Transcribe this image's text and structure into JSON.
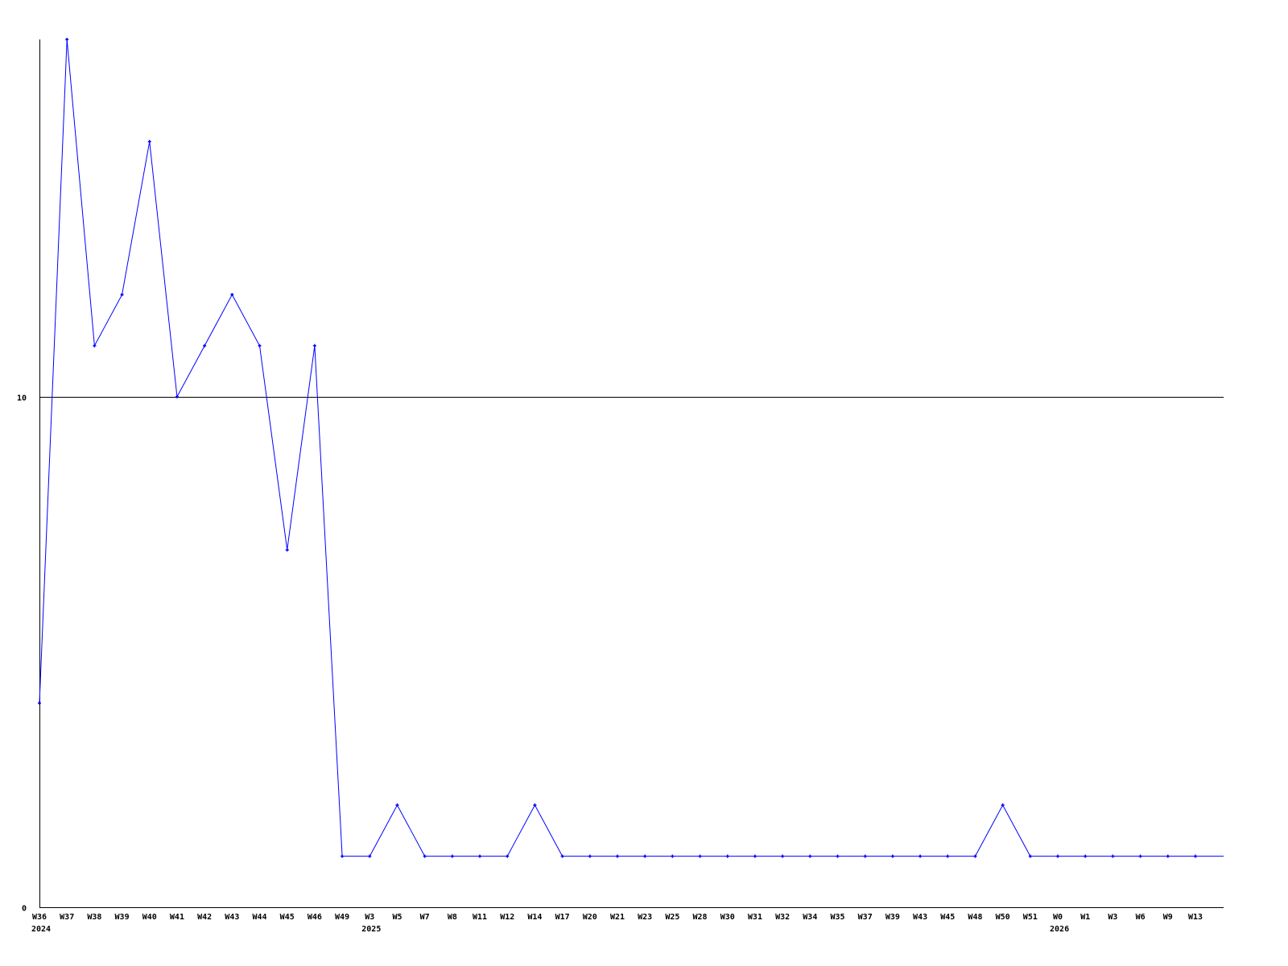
{
  "chart_data": {
    "type": "line",
    "title": "",
    "xlabel": "",
    "ylabel": "",
    "ylim": [
      0,
      17
    ],
    "yticks": [
      0,
      10
    ],
    "ytick_labels": [
      "0",
      "10"
    ],
    "grid": "horizontal line at 10",
    "line_color": "#0000ff",
    "axis_color": "#000000",
    "categories": [
      "W36",
      "W37",
      "W38",
      "W39",
      "W40",
      "W41",
      "W42",
      "W43",
      "W44",
      "W45",
      "W46",
      "W49",
      "W3",
      "W5",
      "W7",
      "W8",
      "W11",
      "W12",
      "W14",
      "W17",
      "W20",
      "W21",
      "W23",
      "W25",
      "W28",
      "W30",
      "W31",
      "W32",
      "W34",
      "W35",
      "W37",
      "W39",
      "W43",
      "W45",
      "W48",
      "W50",
      "W51",
      "W0",
      "W1",
      "W3",
      "W6",
      "W9",
      "W13"
    ],
    "year_labels": [
      {
        "category_index": 0,
        "label": "2024"
      },
      {
        "category_index": 12,
        "label": "2025"
      },
      {
        "category_index": 37,
        "label": "2026"
      }
    ],
    "values": [
      4,
      17,
      11,
      12,
      15,
      10,
      11,
      12,
      11,
      7,
      11,
      1,
      1,
      2,
      1,
      1,
      1,
      1,
      2,
      1,
      1,
      1,
      1,
      1,
      1,
      1,
      1,
      1,
      1,
      1,
      1,
      1,
      1,
      1,
      1,
      2,
      1,
      1,
      1,
      1,
      1,
      1,
      1
    ]
  }
}
